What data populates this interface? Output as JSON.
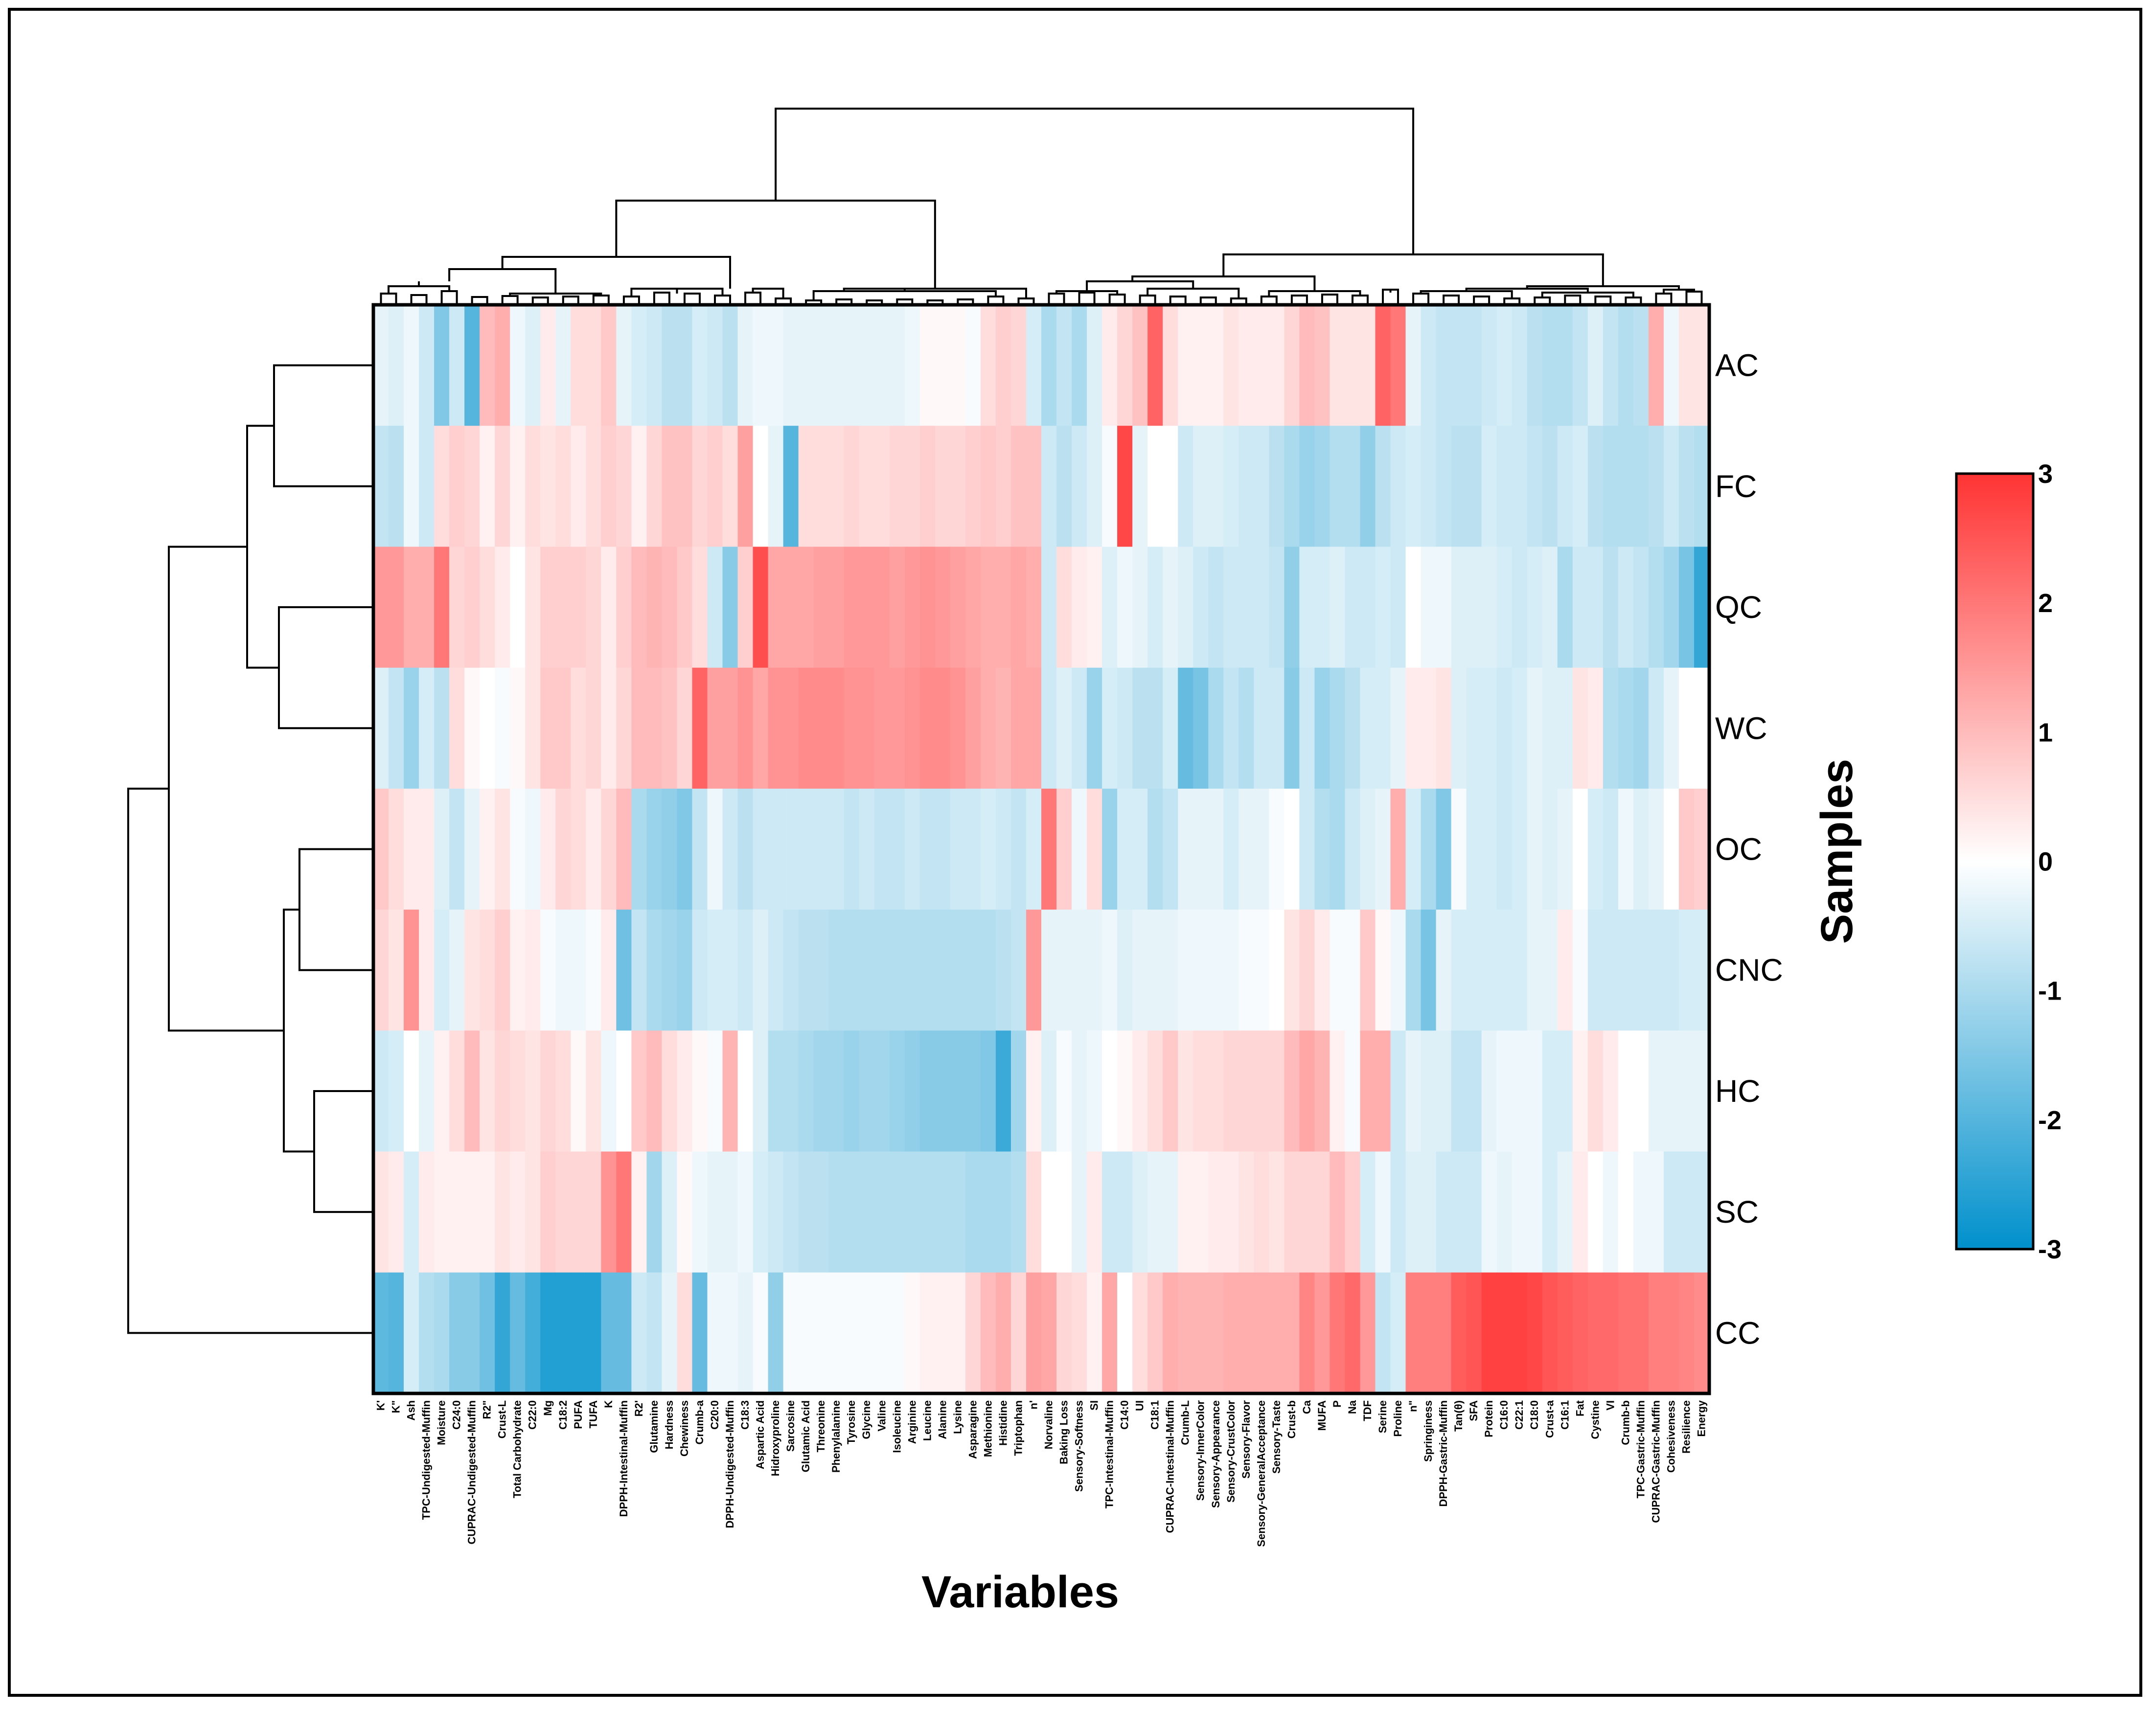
{
  "chart_data": {
    "type": "heatmap",
    "xlabel": "Variables",
    "ylabel": "Samples",
    "rows": [
      "AC",
      "FC",
      "QC",
      "WC",
      "OC",
      "CNC",
      "HC",
      "SC",
      "CC"
    ],
    "columns": [
      "K'",
      "K\"",
      "Ash",
      "TPC-Undigested-Muffin",
      "Moisture",
      "C24:0",
      "CUPRAC-Undigested-Muffin",
      "R2\"",
      "Crust-L",
      "Total Carbohydrate",
      "C22:0",
      "Mg",
      "C18:2",
      "PUFA",
      "TUFA",
      "K",
      "DPPH-Intestinal-Muffin",
      "R2'",
      "Glutamine",
      "Hardness",
      "Chewiness",
      "Crumb-a",
      "C20:0",
      "DPPH-Undigested-Muffin",
      "C18:3",
      "Aspartic Acid",
      "Hidroxyproline",
      "Sarcosine",
      "Glutamic Acid",
      "Threonine",
      "Phenylalanine",
      "Tyrosine",
      "Glycine",
      "Valine",
      "Isoleucine",
      "Arginine",
      "Leucine",
      "Alanine",
      "Lysine",
      "Asparagine",
      "Methionine",
      "Histidine",
      "Triptophan",
      "n'",
      "Norvaline",
      "Baking Loss",
      "Sensory-Softness",
      "SI",
      "TPC-Intestinal-Muffin",
      "C14:0",
      "UI",
      "C18:1",
      "CUPRAC-Intestinal-Muffin",
      "Crumb-L",
      "Sensory-InnerColor",
      "Sensory-Appearance",
      "Sensory-CrustColor",
      "Sensory-Flavor",
      "Sensory-GeneralAcceptance",
      "Sensory-Taste",
      "Crust-b",
      "Ca",
      "MUFA",
      "P",
      "Na",
      "TDF",
      "Serine",
      "Proline",
      "n\"",
      "Springiness",
      "DPPH-Gastric-Muffin",
      "Tan(θ)",
      "SFA",
      "Protein",
      "C16:0",
      "C22:1",
      "C18:0",
      "Crust-a",
      "C16:1",
      "Fat",
      "Cystine",
      "VI",
      "Crumb-b",
      "TPC-Gastric-Muffin",
      "CUPRAC-Gastric-Muffin",
      "Cohesiveness",
      "Resilience",
      "Energy"
    ],
    "values": [
      [
        -0.3,
        -0.4,
        -0.2,
        -0.6,
        -1.5,
        -0.6,
        -2.0,
        1.0,
        1.2,
        -0.2,
        -0.4,
        0.3,
        -0.3,
        0.5,
        0.5,
        0.8,
        -0.3,
        -0.5,
        -0.6,
        -0.8,
        -0.8,
        -0.5,
        -0.6,
        -0.8,
        -0.3,
        -0.2,
        -0.2,
        -0.3,
        -0.3,
        -0.3,
        -0.3,
        -0.3,
        -0.3,
        -0.3,
        -0.3,
        -0.2,
        0.1,
        0.1,
        0.1,
        -0.1,
        0.5,
        0.7,
        0.6,
        -0.5,
        -1.0,
        -0.7,
        -1.0,
        -0.4,
        0.3,
        0.6,
        0.9,
        2.3,
        0.5,
        0.2,
        0.2,
        0.2,
        0.4,
        0.3,
        0.3,
        0.3,
        0.6,
        1.0,
        0.9,
        0.4,
        0.4,
        0.4,
        2.3,
        2.0,
        -0.3,
        -0.6,
        -0.7,
        -0.7,
        -0.7,
        -0.6,
        -0.5,
        -0.6,
        -0.8,
        -0.9,
        -0.9,
        -0.7,
        -0.4,
        -0.7,
        -0.9,
        -0.8,
        1.2,
        -0.2,
        0.4,
        0.4
      ],
      [
        -0.7,
        -0.8,
        -0.2,
        -0.6,
        0.5,
        0.7,
        0.6,
        0.2,
        0.6,
        0.2,
        0.5,
        0.4,
        0.5,
        0.3,
        0.5,
        0.7,
        0.6,
        0.2,
        0.6,
        0.9,
        0.9,
        0.6,
        0.7,
        0.5,
        1.4,
        0.0,
        -0.3,
        -2.0,
        0.5,
        0.5,
        0.5,
        0.6,
        0.5,
        0.5,
        0.6,
        0.6,
        0.7,
        0.6,
        0.6,
        0.7,
        0.8,
        0.7,
        0.9,
        0.9,
        -0.6,
        -0.8,
        -0.6,
        -0.4,
        -0.1,
        2.7,
        -0.3,
        0.0,
        0.0,
        -0.6,
        -0.4,
        -0.4,
        -0.5,
        -0.6,
        -0.6,
        -0.8,
        -1.0,
        -1.2,
        -1.1,
        -0.9,
        -0.9,
        -1.3,
        -0.8,
        -0.6,
        -0.5,
        -0.6,
        -0.7,
        -0.8,
        -0.8,
        -0.5,
        -0.6,
        -0.6,
        -0.7,
        -0.8,
        -0.6,
        -0.5,
        -0.8,
        -0.9,
        -0.9,
        -0.9,
        -0.8,
        -0.6,
        -0.8,
        -0.9
      ],
      [
        1.5,
        1.5,
        1.2,
        1.2,
        2.0,
        0.6,
        0.7,
        0.5,
        0.3,
        0.0,
        0.4,
        0.7,
        0.7,
        0.7,
        0.6,
        0.3,
        0.7,
        1.0,
        1.1,
        1.0,
        0.8,
        0.5,
        -0.6,
        -1.4,
        0.7,
        2.6,
        1.3,
        1.3,
        1.3,
        1.4,
        1.4,
        1.5,
        1.5,
        1.5,
        1.4,
        1.5,
        1.6,
        1.5,
        1.4,
        1.3,
        1.2,
        1.2,
        1.3,
        1.2,
        -0.6,
        0.5,
        0.3,
        0.2,
        -0.4,
        -0.2,
        -0.3,
        -0.5,
        -0.3,
        -0.4,
        -0.6,
        -0.7,
        -0.6,
        -0.6,
        -0.6,
        -0.7,
        -1.3,
        -0.5,
        -0.5,
        -0.4,
        -0.6,
        -0.6,
        -0.5,
        -0.6,
        0.0,
        -0.2,
        -0.2,
        -0.4,
        -0.4,
        -0.4,
        -0.5,
        -0.6,
        -0.5,
        -0.4,
        -1.0,
        -0.6,
        -0.6,
        -0.8,
        -0.6,
        -0.7,
        -0.9,
        -1.1,
        -1.6,
        -2.4
      ],
      [
        -0.4,
        -0.7,
        -1.2,
        -0.5,
        -0.8,
        0.5,
        0.1,
        0.0,
        -0.1,
        0.1,
        0.4,
        0.8,
        0.8,
        0.5,
        0.6,
        0.3,
        0.6,
        1.0,
        1.0,
        0.9,
        0.6,
        2.3,
        1.4,
        1.4,
        1.6,
        1.3,
        1.6,
        1.6,
        1.7,
        1.7,
        1.7,
        1.6,
        1.6,
        1.5,
        1.5,
        1.6,
        1.7,
        1.7,
        1.6,
        1.4,
        1.2,
        1.1,
        1.3,
        1.3,
        -0.6,
        -0.4,
        -0.6,
        -1.2,
        -0.5,
        -0.6,
        -0.8,
        -0.8,
        -0.5,
        -1.8,
        -1.6,
        -1.0,
        -0.7,
        -0.9,
        -0.6,
        -0.6,
        -1.4,
        -0.6,
        -1.2,
        -1.0,
        -0.8,
        -0.5,
        -0.5,
        -0.3,
        0.3,
        0.3,
        0.4,
        -0.4,
        -0.5,
        -0.5,
        -0.6,
        -0.5,
        -0.3,
        -0.4,
        -0.4,
        0.4,
        0.3,
        -0.9,
        -1.0,
        -1.1,
        -0.6,
        -0.3,
        0.0,
        0.0
      ],
      [
        0.8,
        0.5,
        0.3,
        0.3,
        -0.4,
        -0.7,
        -0.3,
        0.2,
        0.4,
        -0.1,
        -0.2,
        0.3,
        0.6,
        0.5,
        0.3,
        0.6,
        1.0,
        -1.0,
        -1.2,
        -1.3,
        -1.5,
        -0.7,
        -0.2,
        -0.6,
        -0.8,
        -0.6,
        -0.6,
        -0.6,
        -0.6,
        -0.6,
        -0.6,
        -0.7,
        -0.6,
        -0.7,
        -0.7,
        -0.6,
        -0.7,
        -0.7,
        -0.6,
        -0.6,
        -0.5,
        -0.6,
        -0.7,
        -0.5,
        2.0,
        0.7,
        -0.2,
        0.5,
        -1.2,
        -0.5,
        -0.5,
        -0.9,
        -0.7,
        -0.3,
        -0.3,
        -0.3,
        -0.5,
        -0.3,
        -0.3,
        -0.1,
        0.0,
        -0.6,
        -0.9,
        -1.0,
        -0.6,
        -0.4,
        -0.3,
        1.2,
        -0.5,
        -1.0,
        -1.5,
        -0.1,
        -0.5,
        -0.5,
        -0.6,
        -0.5,
        -0.3,
        -0.4,
        -0.3,
        0.0,
        -0.5,
        -0.6,
        -0.2,
        -0.4,
        -0.3,
        0.0,
        0.8,
        0.7
      ],
      [
        0.6,
        0.4,
        1.6,
        0.3,
        -0.5,
        -0.3,
        0.4,
        0.5,
        0.7,
        0.2,
        0.3,
        -0.1,
        -0.2,
        -0.2,
        -0.1,
        0.3,
        -1.7,
        -0.7,
        -1.0,
        -1.1,
        -1.2,
        -0.6,
        -0.5,
        -0.5,
        -0.6,
        -0.4,
        -0.6,
        -0.7,
        -0.8,
        -0.8,
        -0.9,
        -0.9,
        -0.9,
        -0.9,
        -0.9,
        -0.9,
        -0.9,
        -0.9,
        -0.9,
        -0.9,
        -0.9,
        -0.8,
        -0.7,
        1.5,
        -0.3,
        -0.3,
        -0.3,
        -0.3,
        -0.2,
        -0.4,
        -0.3,
        -0.3,
        -0.3,
        -0.2,
        -0.2,
        -0.2,
        -0.2,
        -0.1,
        -0.1,
        0.0,
        0.4,
        0.6,
        0.3,
        -0.1,
        -0.1,
        0.8,
        0.1,
        -0.2,
        -1.0,
        -1.6,
        -0.3,
        -0.5,
        -0.5,
        -0.5,
        -0.5,
        -0.5,
        -0.3,
        -0.3,
        0.3,
        -0.1,
        -0.6,
        -0.6,
        -0.6,
        -0.6,
        -0.6,
        -0.6,
        -0.5,
        -0.5
      ],
      [
        -0.6,
        -0.5,
        0.0,
        -0.3,
        0.2,
        0.5,
        1.0,
        0.4,
        0.6,
        0.5,
        0.4,
        0.6,
        0.5,
        0.1,
        0.4,
        -0.2,
        0.0,
        0.8,
        1.0,
        0.5,
        0.3,
        0.1,
        -0.1,
        1.1,
        0.0,
        -0.4,
        -0.9,
        -0.9,
        -1.0,
        -1.1,
        -1.1,
        -1.2,
        -1.1,
        -1.1,
        -1.2,
        -1.3,
        -1.4,
        -1.4,
        -1.4,
        -1.4,
        -1.5,
        -2.3,
        -1.1,
        0.2,
        -0.4,
        -0.1,
        -0.3,
        -0.2,
        0.0,
        0.1,
        0.3,
        0.5,
        0.8,
        0.4,
        0.5,
        0.5,
        0.6,
        0.6,
        0.6,
        0.6,
        1.0,
        1.3,
        1.1,
        0.2,
        -0.1,
        1.2,
        1.2,
        -0.6,
        -0.3,
        -0.4,
        -0.4,
        -0.7,
        -0.7,
        -0.3,
        -0.2,
        -0.2,
        -0.2,
        -0.5,
        -0.5,
        0.2,
        0.5,
        0.3,
        0.0,
        0.0,
        -0.3,
        -0.3,
        -0.3,
        -0.3
      ],
      [
        0.4,
        0.3,
        -0.5,
        0.3,
        0.2,
        0.2,
        0.2,
        0.2,
        0.4,
        0.3,
        0.4,
        0.7,
        0.6,
        0.6,
        0.6,
        1.6,
        2.0,
        0.2,
        -1.1,
        -0.4,
        0.1,
        -0.2,
        -0.3,
        -0.3,
        -0.2,
        -0.5,
        -0.6,
        -0.7,
        -0.8,
        -0.8,
        -0.9,
        -0.9,
        -0.9,
        -0.9,
        -0.9,
        -0.9,
        -0.9,
        -0.9,
        -0.9,
        -1.0,
        -1.0,
        -1.0,
        -0.9,
        0.5,
        0.0,
        0.0,
        -0.3,
        0.3,
        -0.6,
        -0.6,
        -0.4,
        -0.3,
        -0.3,
        0.2,
        0.2,
        0.3,
        0.3,
        0.4,
        0.5,
        0.4,
        0.6,
        0.6,
        0.6,
        1.0,
        0.7,
        -0.5,
        -0.2,
        -0.6,
        -0.4,
        -0.4,
        -0.6,
        -0.6,
        -0.6,
        -0.2,
        -0.3,
        -0.2,
        -0.2,
        -0.5,
        -0.3,
        0.3,
        0.0,
        -0.2,
        0.0,
        -0.2,
        -0.2,
        -0.6,
        -0.6,
        -0.6
      ],
      [
        -1.9,
        -2.0,
        -0.5,
        -0.9,
        -1.0,
        -1.4,
        -1.4,
        -1.7,
        -2.4,
        -1.8,
        -2.2,
        -2.6,
        -2.6,
        -2.6,
        -2.6,
        -1.8,
        -1.8,
        -0.6,
        -0.7,
        -0.3,
        0.5,
        -1.8,
        -0.2,
        -0.2,
        -0.3,
        -0.1,
        -1.3,
        -0.1,
        -0.1,
        -0.1,
        -0.1,
        -0.1,
        -0.1,
        -0.1,
        -0.1,
        0.1,
        0.2,
        0.2,
        0.2,
        0.6,
        1.0,
        1.2,
        0.6,
        1.4,
        1.3,
        0.6,
        0.5,
        0.2,
        1.3,
        0.0,
        0.5,
        0.8,
        1.2,
        1.1,
        1.1,
        1.1,
        1.2,
        1.2,
        1.2,
        1.2,
        1.2,
        1.8,
        1.5,
        2.0,
        2.2,
        1.5,
        -0.7,
        -0.5,
        1.9,
        1.9,
        1.9,
        2.4,
        2.5,
        2.8,
        2.8,
        2.8,
        2.7,
        2.5,
        2.4,
        2.3,
        2.2,
        2.2,
        2.1,
        2.1,
        1.9,
        1.9,
        1.8,
        1.7
      ]
    ],
    "color_scale": {
      "min": -3,
      "max": 3,
      "low_color": "#0090cc",
      "mid_color": "#ffffff",
      "high_color": "#ff3333"
    },
    "colorbar_ticks": [
      "3",
      "2",
      "1",
      "0",
      "-1",
      "-2",
      "-3"
    ],
    "dendrograms": [
      "top (variables)",
      "left (samples)"
    ]
  }
}
